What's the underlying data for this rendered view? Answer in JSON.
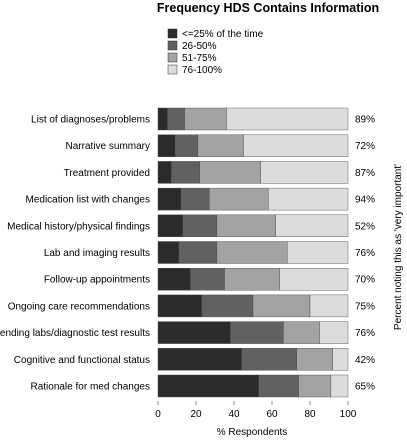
{
  "chart_data": {
    "type": "bar",
    "orientation": "horizontal",
    "stacked": true,
    "title": "Frequency HDS Contains Information",
    "xlabel": "% Respondents",
    "right_axis_label": "Percent noting this as 'very important'",
    "xlim": [
      0,
      100
    ],
    "xticks": [
      "0",
      "20",
      "40",
      "60",
      "80",
      "100"
    ],
    "legend_position": "top",
    "categories": [
      "List of diagnoses/problems",
      "Narrative summary",
      "Treatment provided",
      "Medication list with changes",
      "Medical history/physical findings",
      "Lab and imaging results",
      "Follow-up appointments",
      "Ongoing care recommendations",
      "Pending labs/diagnostic test results",
      "Cognitive and functional status",
      "Rationale for med changes"
    ],
    "series": [
      {
        "name": "<=25% of the time",
        "color": "#2b2b2b",
        "values": [
          5,
          9,
          7,
          12,
          13,
          11,
          17,
          23,
          38,
          44,
          53
        ]
      },
      {
        "name": "26-50%",
        "color": "#616161",
        "values": [
          9,
          12,
          15,
          15,
          18,
          20,
          18,
          27,
          28,
          29,
          21
        ]
      },
      {
        "name": "51-75%",
        "color": "#a3a3a3",
        "values": [
          22,
          24,
          32,
          31,
          31,
          37,
          29,
          30,
          19,
          19,
          17
        ]
      },
      {
        "name": "76-100%",
        "color": "#dcdcdc",
        "values": [
          64,
          55,
          46,
          42,
          38,
          32,
          36,
          20,
          15,
          8,
          9
        ]
      }
    ],
    "right_values": [
      "89%",
      "72%",
      "87%",
      "94%",
      "52%",
      "76%",
      "70%",
      "75%",
      "76%",
      "42%",
      "65%"
    ]
  }
}
